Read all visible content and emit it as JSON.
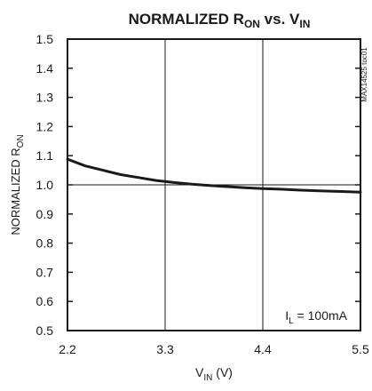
{
  "chart_data": {
    "type": "line",
    "title_parts": {
      "prefix": "NORMALIZED R",
      "prefix_sub": "ON",
      "mid": " vs. V",
      "mid_sub": "IN"
    },
    "xlabel_parts": {
      "main": "V",
      "sub": "IN",
      "suffix": " (V)"
    },
    "ylabel_parts": {
      "main": "NORMALIZED R",
      "sub": "ON"
    },
    "xlim": [
      2.2,
      5.5
    ],
    "ylim": [
      0.5,
      1.5
    ],
    "xticks": [
      2.2,
      3.3,
      4.4,
      5.5
    ],
    "xtick_labels": [
      "2.2",
      "3.3",
      "4.4",
      "5.5"
    ],
    "yticks": [
      0.5,
      0.6,
      0.7,
      0.8,
      0.9,
      1.0,
      1.1,
      1.2,
      1.3,
      1.4,
      1.5
    ],
    "ytick_labels": [
      "0.5",
      "0.6",
      "0.7",
      "0.8",
      "0.9",
      "1.0",
      "1.1",
      "1.2",
      "1.3",
      "1.4",
      "1.5"
    ],
    "grid": "major x at 3.3 and 4.4, y at 1.0",
    "annotation_parts": {
      "main": "I",
      "sub": "L",
      "suffix": " = 100mA"
    },
    "side_label": "MAX14525 toc01",
    "series": [
      {
        "x": [
          2.2,
          2.4,
          2.6,
          2.8,
          3.0,
          3.2,
          3.4,
          3.6,
          3.8,
          4.0,
          4.2,
          4.4,
          4.6,
          4.8,
          5.0,
          5.2,
          5.5
        ],
        "y": [
          1.088,
          1.065,
          1.05,
          1.035,
          1.025,
          1.015,
          1.008,
          1.002,
          0.998,
          0.994,
          0.99,
          0.987,
          0.985,
          0.982,
          0.98,
          0.978,
          0.975
        ]
      }
    ],
    "color": "#1a1a1a"
  }
}
